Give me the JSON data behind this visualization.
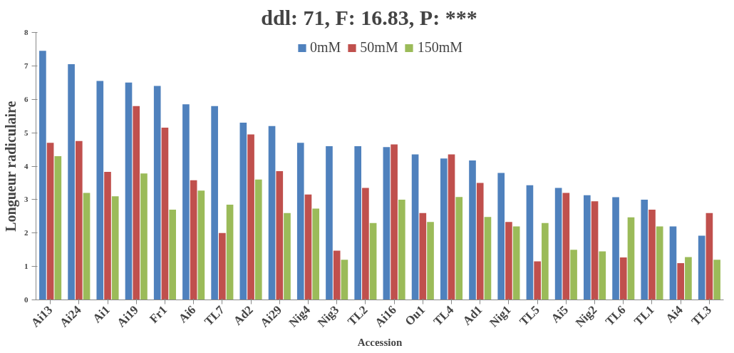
{
  "chart_data": {
    "type": "bar",
    "title": "ddl: 71,   F: 16.83,   P: ***",
    "xlabel": "Accession",
    "ylabel": "Longueur radiculaire",
    "categories": [
      "Ai13",
      "Ai24",
      "Ai1",
      "Ai19",
      "Fr1",
      "Ai6",
      "TL7",
      "Ad2",
      "Ai29",
      "Nig4",
      "Nig3",
      "TL2",
      "Ai16",
      "Ou1",
      "TL4",
      "Ad1",
      "Nig1",
      "TL5",
      "Ai5",
      "Nig2",
      "TL6",
      "TL1",
      "Ai4",
      "TL3"
    ],
    "series": [
      {
        "name": "0mM",
        "color": "#4f81bd",
        "values": [
          7.45,
          7.05,
          6.55,
          6.5,
          6.4,
          5.85,
          5.8,
          5.3,
          5.2,
          4.7,
          4.6,
          4.6,
          4.57,
          4.35,
          4.23,
          4.17,
          3.8,
          3.43,
          3.35,
          3.13,
          3.07,
          3.0,
          2.2,
          1.92
        ]
      },
      {
        "name": "50mM",
        "color": "#c0504d",
        "values": [
          4.7,
          4.75,
          3.83,
          5.8,
          5.15,
          3.58,
          2.0,
          4.95,
          3.85,
          3.15,
          1.47,
          3.35,
          4.65,
          2.6,
          4.35,
          3.5,
          2.33,
          1.15,
          3.2,
          2.95,
          1.27,
          2.7,
          1.1,
          2.6
        ]
      },
      {
        "name": "150mM",
        "color": "#9bbb59",
        "values": [
          4.3,
          3.2,
          3.1,
          3.78,
          2.7,
          3.27,
          2.85,
          3.6,
          2.6,
          2.73,
          1.2,
          2.3,
          3.0,
          2.33,
          3.08,
          2.48,
          2.2,
          2.3,
          1.5,
          1.45,
          2.47,
          2.2,
          1.28,
          1.2
        ]
      }
    ],
    "ylim": [
      0,
      8
    ],
    "yticks": [
      0,
      1,
      2,
      3,
      4,
      5,
      6,
      7,
      8
    ],
    "grid": false,
    "legend": "top"
  }
}
